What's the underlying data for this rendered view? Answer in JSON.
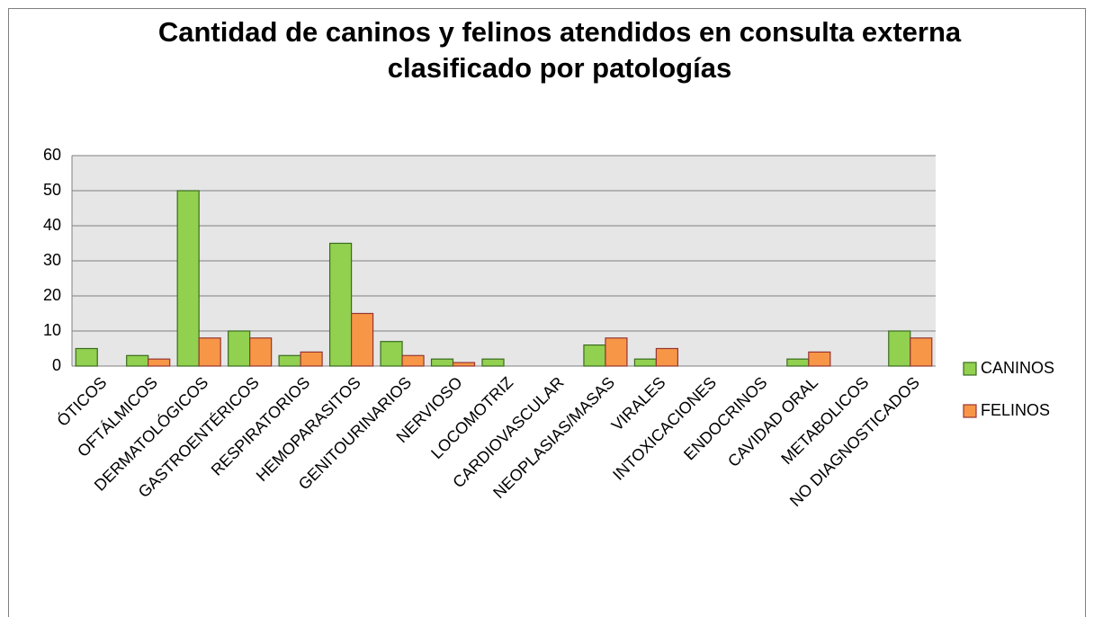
{
  "chart_data": {
    "type": "bar",
    "title": "Cantidad de caninos y felinos atendidos en consulta externa clasificado por patologías",
    "categories": [
      "ÓTICOS",
      "OFTÁLMICOS",
      "DERMATOLÓGICOS",
      "GASTROENTÉRICOS",
      "RESPIRATORIOS",
      "HEMOPARASITOS",
      "GENITOURINARIOS",
      "NERVIOSO",
      "LOCOMOTRIZ",
      "CARDIOVASCULAR",
      "NEOPLASIAS/MASAS",
      "VIRALES",
      "INTOXICACIONES",
      "ENDOCRINOS",
      "CAVIDAD ORAL",
      "METABOLICOS",
      "NO DIAGNOSTICADOS"
    ],
    "series": [
      {
        "name": "CANINOS",
        "color": "#92d050",
        "values": [
          5,
          3,
          50,
          10,
          3,
          35,
          7,
          2,
          2,
          0,
          6,
          2,
          0,
          0,
          2,
          0,
          10
        ]
      },
      {
        "name": "FELINOS",
        "color": "#f79646",
        "values": [
          0,
          2,
          8,
          8,
          4,
          15,
          3,
          1,
          0,
          0,
          8,
          5,
          0,
          0,
          4,
          0,
          8
        ]
      }
    ],
    "ylim": [
      0,
      60
    ],
    "yticks": [
      0,
      10,
      20,
      30,
      40,
      50,
      60
    ],
    "grid": true,
    "legend": "right"
  }
}
